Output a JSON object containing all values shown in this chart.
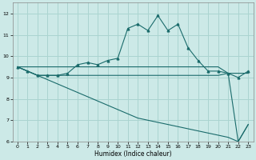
{
  "xlabel": "Humidex (Indice chaleur)",
  "xlim": [
    -0.5,
    23.5
  ],
  "ylim": [
    6,
    12.5
  ],
  "yticks": [
    6,
    7,
    8,
    9,
    10,
    11,
    12
  ],
  "xticks": [
    0,
    1,
    2,
    3,
    4,
    5,
    6,
    7,
    8,
    9,
    10,
    11,
    12,
    13,
    14,
    15,
    16,
    17,
    18,
    19,
    20,
    21,
    22,
    23
  ],
  "background_color": "#cce9e7",
  "grid_color": "#aad4d0",
  "line_color": "#1a6b6b",
  "series1_y": [
    9.5,
    9.3,
    9.1,
    9.1,
    9.1,
    9.2,
    9.6,
    9.7,
    9.6,
    9.8,
    9.9,
    11.3,
    11.5,
    11.2,
    11.9,
    11.2,
    11.5,
    10.4,
    9.8,
    9.3,
    9.3,
    9.2,
    9.0,
    9.3
  ],
  "series2_y": [
    9.5,
    9.3,
    9.1,
    9.1,
    9.1,
    9.1,
    9.1,
    9.1,
    9.1,
    9.1,
    9.1,
    9.1,
    9.1,
    9.1,
    9.1,
    9.1,
    9.1,
    9.1,
    9.1,
    9.1,
    9.1,
    9.2,
    9.2,
    9.2
  ],
  "series3_y": [
    9.5,
    9.5,
    9.5,
    9.5,
    9.5,
    9.5,
    9.5,
    9.5,
    9.5,
    9.5,
    9.5,
    9.5,
    9.5,
    9.5,
    9.5,
    9.5,
    9.5,
    9.5,
    9.5,
    9.5,
    9.5,
    9.2,
    6.0,
    6.8
  ],
  "series4_y": [
    9.5,
    9.3,
    9.1,
    8.9,
    8.7,
    8.5,
    8.3,
    8.1,
    7.9,
    7.7,
    7.5,
    7.3,
    7.1,
    7.0,
    6.9,
    6.8,
    6.7,
    6.6,
    6.5,
    6.4,
    6.3,
    6.2,
    6.0,
    6.8
  ]
}
